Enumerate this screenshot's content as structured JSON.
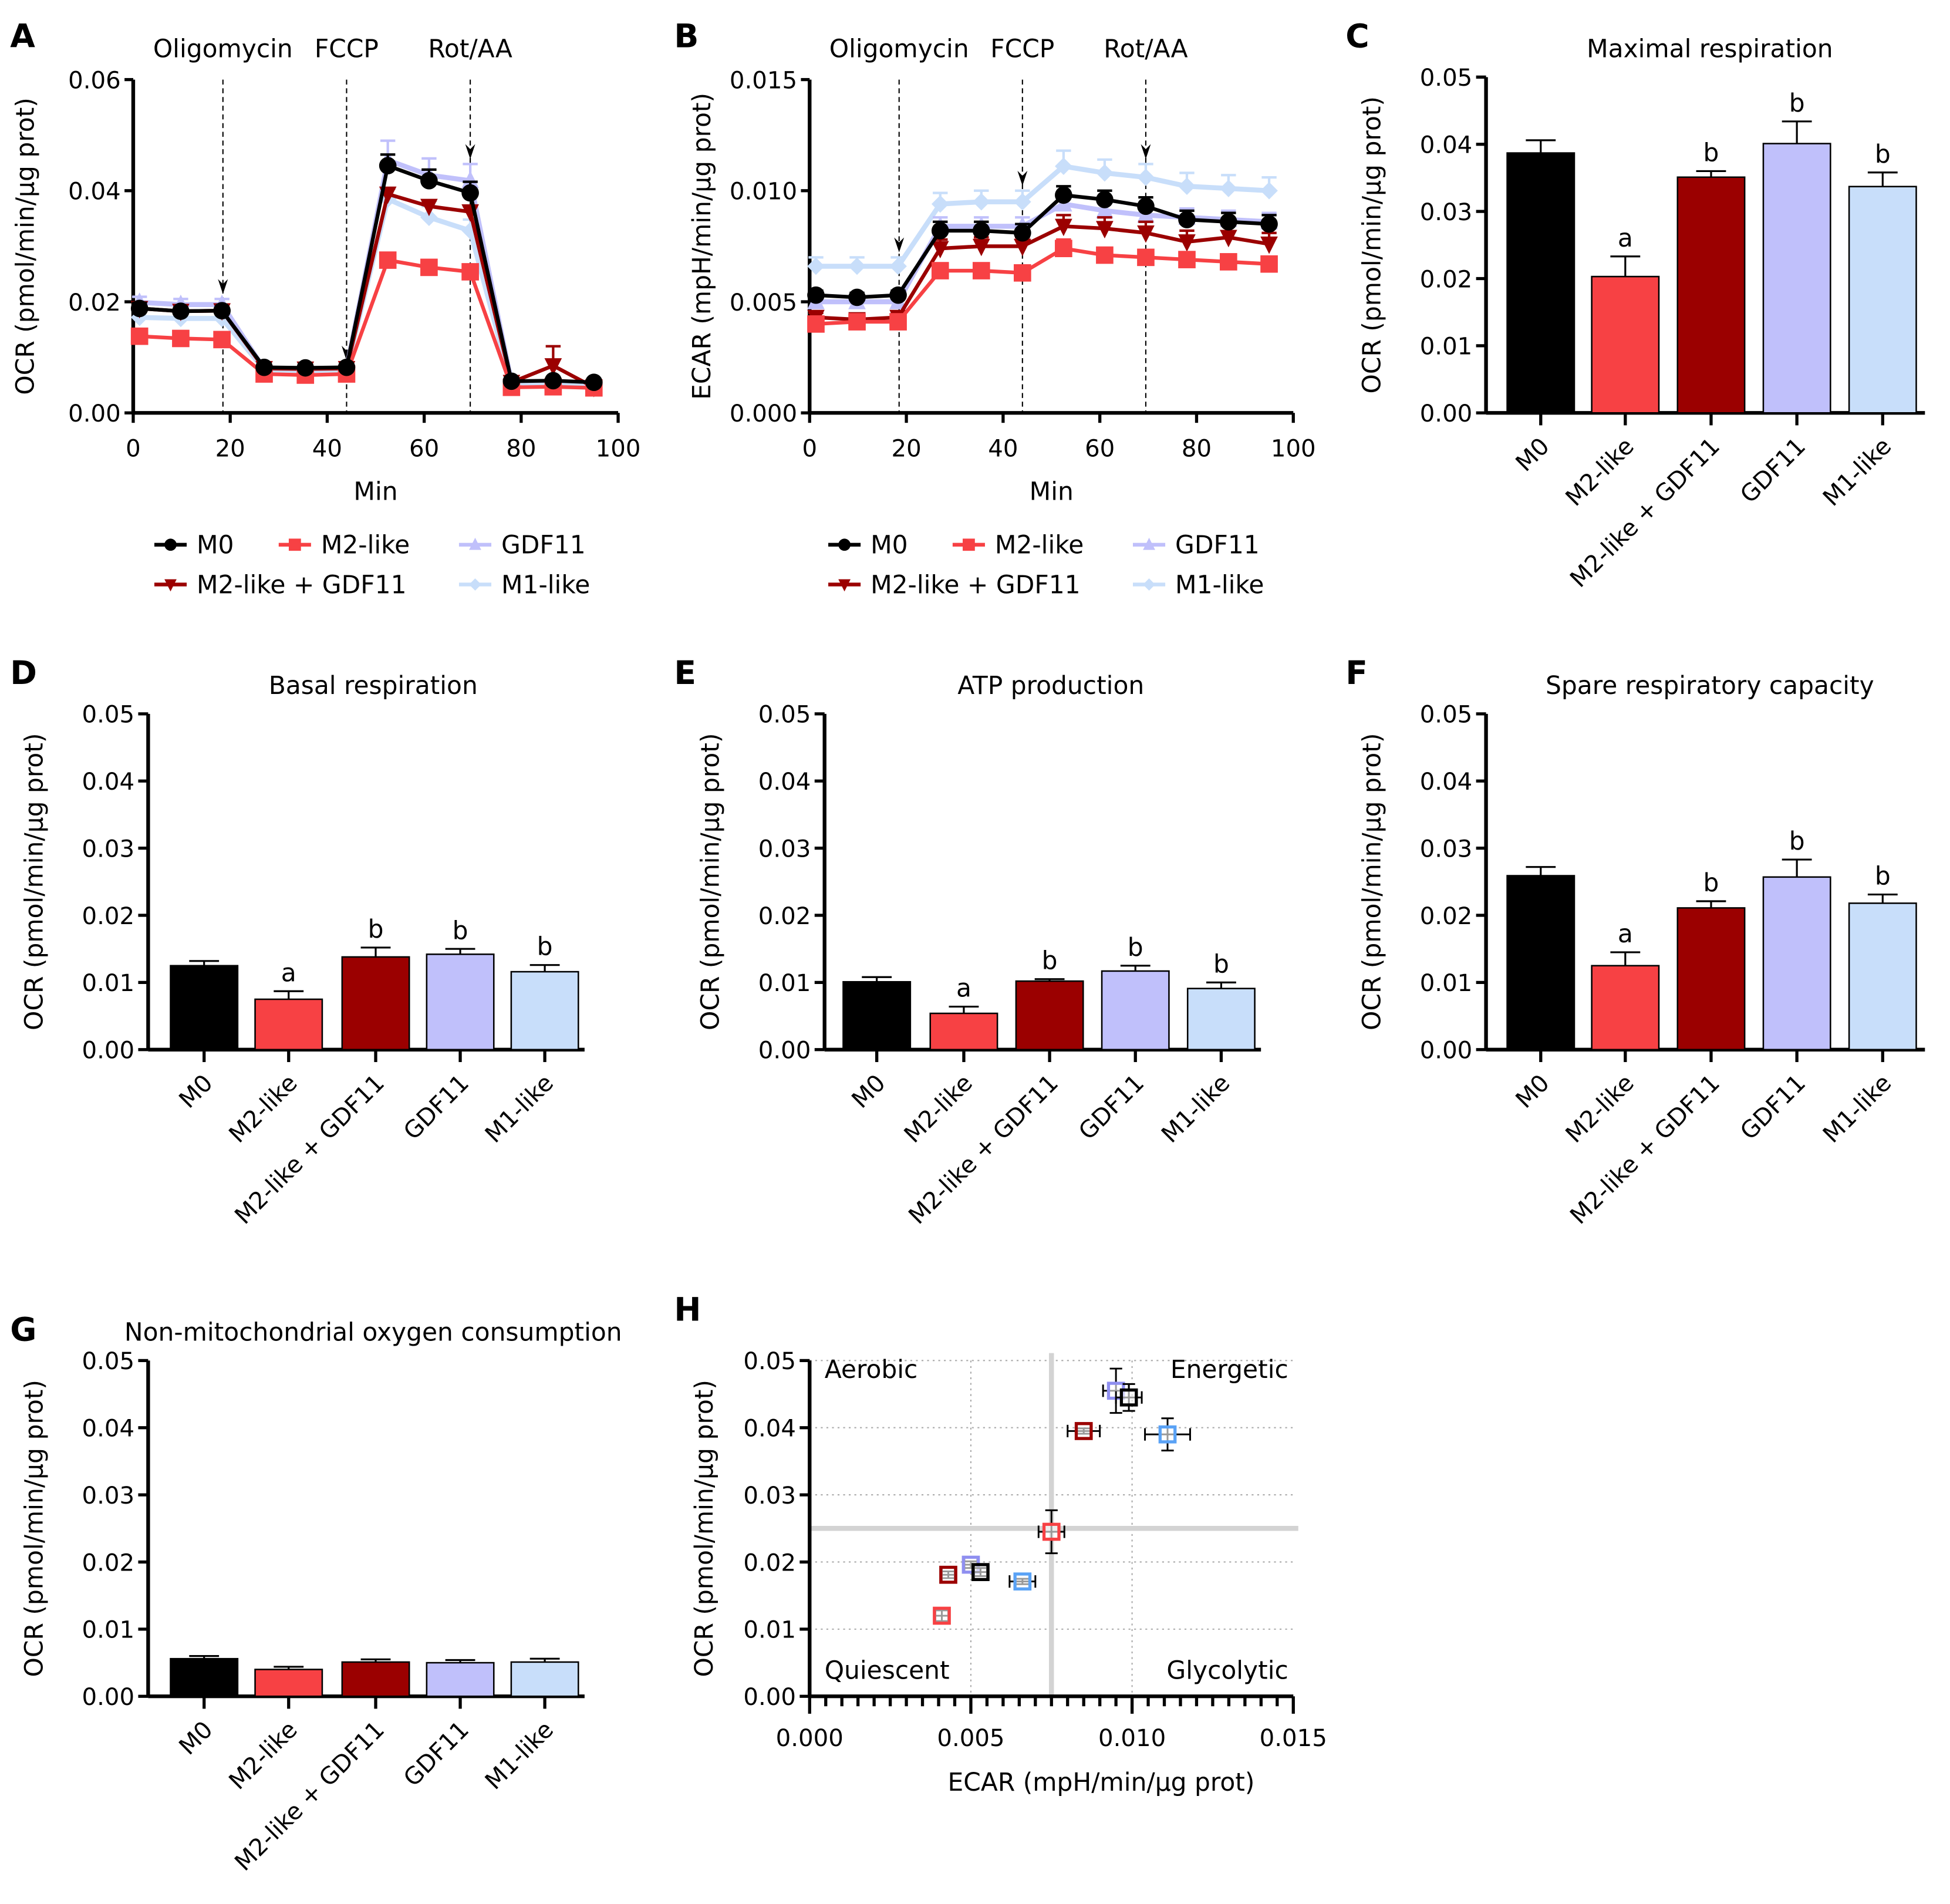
{
  "groups": [
    "M0",
    "M2-like",
    "M2-like + GDF11",
    "GDF11",
    "M1-like"
  ],
  "colors": {
    "M0": "#000000",
    "M2-like": "#f74144",
    "M2-like + GDF11": "#9b0000",
    "GDF11": "#c0c0fb",
    "M1-like": "#c8defa",
    "M1-like_scatter": "#5aa2f5",
    "GDF11_scatter": "#8f8ff0"
  },
  "chart_data": [
    {
      "panel": "A",
      "type": "line",
      "title": "",
      "injections": [
        {
          "label": "Oligomycin",
          "time": 18.5
        },
        {
          "label": "FCCP",
          "time": 44
        },
        {
          "label": "Rot/AA",
          "time": 69.5
        }
      ],
      "xlabel": "Min",
      "ylabel": "OCR (pmol/min/µg prot)",
      "xlim": [
        0,
        100
      ],
      "ylim": [
        0,
        0.06
      ],
      "xticks": [
        "0",
        "20",
        "40",
        "60",
        "80",
        "100"
      ],
      "yticks": [
        "0.00",
        "0.02",
        "0.04",
        "0.06"
      ],
      "x": [
        1.3,
        9.8,
        18.3,
        27,
        35.5,
        44,
        52.5,
        61,
        69.5,
        78,
        86.6,
        95
      ],
      "series": [
        {
          "name": "GDF11",
          "marker": "triangle-up",
          "values": [
            0.0199,
            0.0195,
            0.0195,
            0.0079,
            0.0078,
            0.0079,
            0.0455,
            0.0428,
            0.0418,
            0.0055,
            0.0055,
            0.0052
          ],
          "errors": [
            0.001,
            0.001,
            0.001,
            0.0005,
            0.0005,
            0.0005,
            0.0035,
            0.003,
            0.003,
            0.0005,
            0.0005,
            0.0005
          ]
        },
        {
          "name": "M1-like",
          "marker": "diamond",
          "values": [
            0.0172,
            0.017,
            0.017,
            0.0078,
            0.0076,
            0.0078,
            0.0385,
            0.0352,
            0.0328,
            0.005,
            0.005,
            0.0048
          ],
          "errors": [
            0.001,
            0.001,
            0.001,
            0.0005,
            0.0005,
            0.0005,
            0.002,
            0.002,
            0.002,
            0.0005,
            0.0005,
            0.0005
          ]
        },
        {
          "name": "M2-like + GDF11",
          "marker": "triangle-down",
          "values": [
            0.0188,
            0.0183,
            0.0184,
            0.008,
            0.0079,
            0.008,
            0.0394,
            0.0372,
            0.0362,
            0.0055,
            0.0085,
            0.0046
          ],
          "errors": [
            0.001,
            0.001,
            0.001,
            0.0005,
            0.0005,
            0.0005,
            0.001,
            0.001,
            0.001,
            0.0005,
            0.0035,
            0.0005
          ]
        },
        {
          "name": "M2-like",
          "marker": "square",
          "values": [
            0.0138,
            0.0134,
            0.0132,
            0.007,
            0.0068,
            0.007,
            0.0275,
            0.0262,
            0.0254,
            0.0046,
            0.0047,
            0.0045
          ],
          "errors": [
            0.0005,
            0.0005,
            0.0005,
            0.0003,
            0.0003,
            0.0003,
            0.0005,
            0.0005,
            0.0005,
            0.0003,
            0.0003,
            0.0003
          ]
        },
        {
          "name": "M0",
          "marker": "circle",
          "values": [
            0.0188,
            0.0183,
            0.0184,
            0.0082,
            0.0081,
            0.0082,
            0.0445,
            0.0418,
            0.0396,
            0.0057,
            0.0058,
            0.0055
          ],
          "errors": [
            0.001,
            0.0005,
            0.0005,
            0.0003,
            0.0003,
            0.0003,
            0.002,
            0.002,
            0.002,
            0.0003,
            0.0003,
            0.0003
          ]
        }
      ],
      "legend": "bottom"
    },
    {
      "panel": "B",
      "type": "line",
      "title": "",
      "injections": [
        {
          "label": "Oligomycin",
          "time": 18.5
        },
        {
          "label": "FCCP",
          "time": 44
        },
        {
          "label": "Rot/AA",
          "time": 69.5
        }
      ],
      "xlabel": "Min",
      "ylabel": "ECAR (mpH/min/µg prot)",
      "xlim": [
        0,
        100
      ],
      "ylim": [
        0,
        0.015
      ],
      "xticks": [
        "0",
        "20",
        "40",
        "60",
        "80",
        "100"
      ],
      "yticks": [
        "0.000",
        "0.005",
        "0.010",
        "0.015"
      ],
      "x": [
        1.3,
        9.8,
        18.3,
        27,
        35.5,
        44,
        52.5,
        61,
        69.5,
        78,
        86.6,
        95
      ],
      "series": [
        {
          "name": "M1-like",
          "marker": "diamond",
          "values": [
            0.0066,
            0.0066,
            0.0066,
            0.0094,
            0.0095,
            0.0095,
            0.0111,
            0.0108,
            0.0106,
            0.0102,
            0.0101,
            0.01
          ],
          "errors": [
            0.0004,
            0.0004,
            0.0004,
            0.0005,
            0.0005,
            0.0005,
            0.0007,
            0.0006,
            0.0006,
            0.0006,
            0.0006,
            0.0006
          ]
        },
        {
          "name": "GDF11",
          "marker": "triangle-up",
          "values": [
            0.005,
            0.005,
            0.005,
            0.0084,
            0.0084,
            0.0084,
            0.0094,
            0.0091,
            0.0089,
            0.0088,
            0.0087,
            0.0086
          ],
          "errors": [
            0.0003,
            0.0003,
            0.0003,
            0.0004,
            0.0004,
            0.0004,
            0.0004,
            0.0004,
            0.0004,
            0.0004,
            0.0004,
            0.0004
          ]
        },
        {
          "name": "M2-like + GDF11",
          "marker": "triangle-down",
          "values": [
            0.0043,
            0.0042,
            0.0043,
            0.0074,
            0.0075,
            0.0075,
            0.0084,
            0.0083,
            0.0081,
            0.0077,
            0.0079,
            0.0076
          ],
          "errors": [
            0.0002,
            0.0002,
            0.0002,
            0.0004,
            0.0004,
            0.0004,
            0.0005,
            0.0005,
            0.0005,
            0.0005,
            0.0006,
            0.0005
          ]
        },
        {
          "name": "M2-like",
          "marker": "square",
          "values": [
            0.004,
            0.0041,
            0.0041,
            0.0064,
            0.0064,
            0.0063,
            0.0074,
            0.0071,
            0.007,
            0.0069,
            0.0068,
            0.0067
          ],
          "errors": [
            0.0002,
            0.0002,
            0.0002,
            0.0003,
            0.0003,
            0.0003,
            0.0004,
            0.0003,
            0.0003,
            0.0003,
            0.0003,
            0.0003
          ]
        },
        {
          "name": "M0",
          "marker": "circle",
          "values": [
            0.0053,
            0.0052,
            0.0053,
            0.0082,
            0.0082,
            0.0081,
            0.0098,
            0.0096,
            0.0093,
            0.0087,
            0.0086,
            0.0085
          ],
          "errors": [
            0.0002,
            0.0002,
            0.0002,
            0.0004,
            0.0004,
            0.0004,
            0.0004,
            0.0004,
            0.0004,
            0.0004,
            0.0004,
            0.0004
          ]
        }
      ],
      "legend": "bottom"
    },
    {
      "panel": "C",
      "type": "bar",
      "title": "Maximal respiration",
      "ylabel": "OCR (pmol/min/µg prot)",
      "ylim": [
        0,
        0.05
      ],
      "yticks": [
        "0.00",
        "0.01",
        "0.02",
        "0.03",
        "0.04",
        "0.05"
      ],
      "categories": [
        "M0",
        "M2-like",
        "M2-like + GDF11",
        "GDF11",
        "M1-like"
      ],
      "values": [
        0.0387,
        0.0203,
        0.0351,
        0.0401,
        0.0337
      ],
      "errors": [
        0.0019,
        0.003,
        0.0009,
        0.0033,
        0.0021
      ],
      "annotations": [
        "",
        "a",
        "b",
        "b",
        "b"
      ]
    },
    {
      "panel": "D",
      "type": "bar",
      "title": "Basal respiration",
      "ylabel": "OCR (pmol/min/µg prot)",
      "ylim": [
        0,
        0.05
      ],
      "yticks": [
        "0.00",
        "0.01",
        "0.02",
        "0.03",
        "0.04",
        "0.05"
      ],
      "categories": [
        "M0",
        "M2-like",
        "M2-like + GDF11",
        "GDF11",
        "M1-like"
      ],
      "values": [
        0.0125,
        0.0075,
        0.0138,
        0.0142,
        0.0116
      ],
      "errors": [
        0.0007,
        0.0012,
        0.0014,
        0.0008,
        0.001
      ],
      "annotations": [
        "",
        "a",
        "b",
        "b",
        "b"
      ]
    },
    {
      "panel": "E",
      "type": "bar",
      "title": "ATP production",
      "ylabel": "OCR (pmol/min/µg prot)",
      "ylim": [
        0,
        0.05
      ],
      "yticks": [
        "0.00",
        "0.01",
        "0.02",
        "0.03",
        "0.04",
        "0.05"
      ],
      "categories": [
        "M0",
        "M2-like",
        "M2-like + GDF11",
        "GDF11",
        "M1-like"
      ],
      "values": [
        0.0101,
        0.0054,
        0.0102,
        0.0117,
        0.0091
      ],
      "errors": [
        0.0007,
        0.001,
        0.0003,
        0.0008,
        0.0009
      ],
      "annotations": [
        "",
        "a",
        "b",
        "b",
        "b"
      ]
    },
    {
      "panel": "F",
      "type": "bar",
      "title": "Spare respiratory capacity",
      "ylabel": "OCR (pmol/min/µg prot)",
      "ylim": [
        0,
        0.05
      ],
      "yticks": [
        "0.00",
        "0.01",
        "0.02",
        "0.03",
        "0.04",
        "0.05"
      ],
      "categories": [
        "M0",
        "M2-like",
        "M2-like + GDF11",
        "GDF11",
        "M1-like"
      ],
      "values": [
        0.0259,
        0.0125,
        0.0211,
        0.0257,
        0.0218
      ],
      "errors": [
        0.0013,
        0.002,
        0.001,
        0.0026,
        0.0013
      ],
      "annotations": [
        "",
        "a",
        "b",
        "b",
        "b"
      ]
    },
    {
      "panel": "G",
      "type": "bar",
      "title": "Non-mitochondrial oxygen consumption",
      "ylabel": "OCR (pmol/min/µg prot)",
      "ylim": [
        0,
        0.05
      ],
      "yticks": [
        "0.00",
        "0.01",
        "0.02",
        "0.03",
        "0.04",
        "0.05"
      ],
      "categories": [
        "M0",
        "M2-like",
        "M2-like + GDF11",
        "GDF11",
        "M1-like"
      ],
      "values": [
        0.0056,
        0.004,
        0.0051,
        0.005,
        0.0051
      ],
      "errors": [
        0.0004,
        0.0004,
        0.0004,
        0.0004,
        0.0005
      ],
      "annotations": [
        "",
        "",
        "",
        "",
        ""
      ]
    },
    {
      "panel": "H",
      "type": "scatter",
      "title": "",
      "xlabel": "ECAR (mpH/min/µg prot)",
      "ylabel": "OCR (pmol/min/µg prot)",
      "xlim": [
        0,
        0.015
      ],
      "ylim": [
        0,
        0.05
      ],
      "xticks": [
        "0.000",
        "0.005",
        "0.010",
        "0.015"
      ],
      "yticks": [
        "0.00",
        "0.01",
        "0.02",
        "0.03",
        "0.04",
        "0.05"
      ],
      "grid": true,
      "crosshair": {
        "x": 0.0075,
        "y": 0.025
      },
      "quadrants": {
        "top_left": "Aerobic",
        "top_right": "Energetic",
        "bottom_left": "Quiescent",
        "bottom_right": "Glycolytic"
      },
      "points": [
        {
          "group": "M2-like",
          "state": "baseline",
          "x": 0.0041,
          "y": 0.012,
          "xerr": 0.0002,
          "yerr": 0.0008
        },
        {
          "group": "M2-like + GDF11",
          "state": "baseline",
          "x": 0.0043,
          "y": 0.0181,
          "xerr": 0.0002,
          "yerr": 0.0005
        },
        {
          "group": "GDF11",
          "state": "baseline",
          "x": 0.005,
          "y": 0.0196,
          "xerr": 0.0002,
          "yerr": 0.0005
        },
        {
          "group": "M0",
          "state": "baseline",
          "x": 0.0053,
          "y": 0.0185,
          "xerr": 0.0002,
          "yerr": 0.0006
        },
        {
          "group": "M1-like",
          "state": "baseline",
          "x": 0.0066,
          "y": 0.0171,
          "xerr": 0.0004,
          "yerr": 0.0004
        },
        {
          "group": "M2-like",
          "state": "stressed",
          "x": 0.0075,
          "y": 0.0245,
          "xerr": 0.0004,
          "yerr": 0.0032
        },
        {
          "group": "M2-like + GDF11",
          "state": "stressed",
          "x": 0.0085,
          "y": 0.0395,
          "xerr": 0.0005,
          "yerr": 0.0004
        },
        {
          "group": "GDF11",
          "state": "stressed",
          "x": 0.0095,
          "y": 0.0455,
          "xerr": 0.0004,
          "yerr": 0.0033
        },
        {
          "group": "M0",
          "state": "stressed",
          "x": 0.0099,
          "y": 0.0445,
          "xerr": 0.0004,
          "yerr": 0.002
        },
        {
          "group": "M1-like",
          "state": "stressed",
          "x": 0.0111,
          "y": 0.039,
          "xerr": 0.0007,
          "yerr": 0.0024
        }
      ]
    }
  ],
  "legend": {
    "items": [
      "M0",
      "M2-like",
      "GDF11",
      "M2-like + GDF11",
      "M1-like"
    ]
  },
  "panel_letters": [
    "A",
    "B",
    "C",
    "D",
    "E",
    "F",
    "G",
    "H"
  ]
}
